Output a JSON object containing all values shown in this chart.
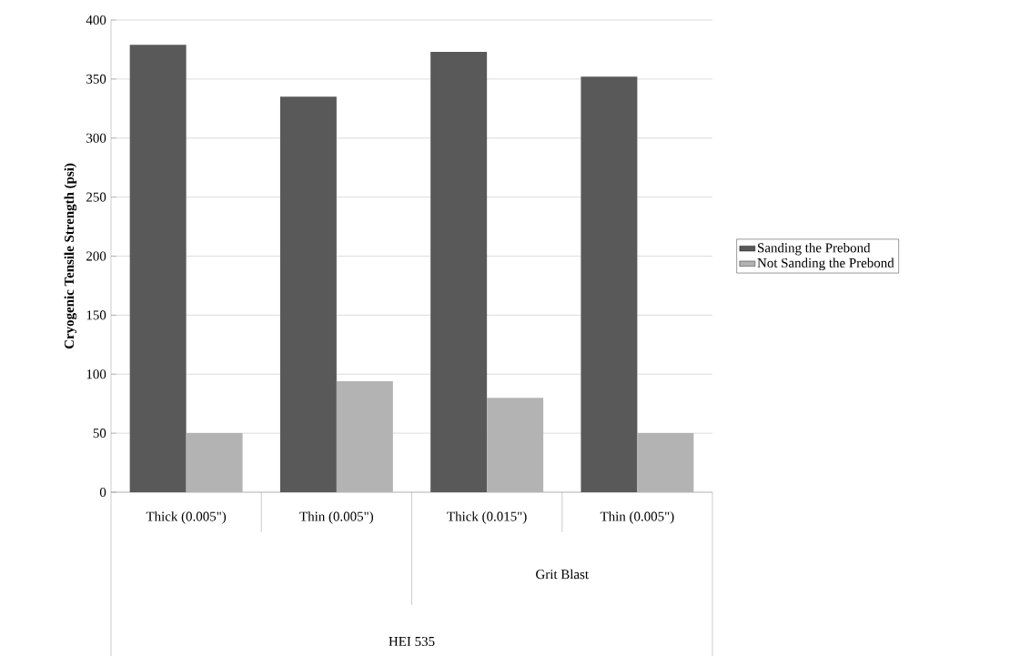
{
  "chart_data": {
    "type": "bar",
    "ylabel": "Cryogenic Tensile Strength (psi)",
    "categories": [
      "Thick (0.005\")",
      "Thin (0.005\")",
      "Thick (0.015\")",
      "Thin (0.005\")"
    ],
    "series": [
      {
        "name": "Sanding the Prebond",
        "color": "#595959",
        "values": [
          379,
          335,
          373,
          352
        ]
      },
      {
        "name": "Not Sanding the Prebond",
        "color": "#b3b3b3",
        "values": [
          50,
          94,
          80,
          50
        ]
      }
    ],
    "annotations": [
      "Grit Blast",
      "HEI 535"
    ],
    "ylim": [
      0,
      400
    ],
    "yticks": [
      0,
      50,
      100,
      150,
      200,
      250,
      300,
      350,
      400
    ],
    "grid": "y",
    "legend": "right"
  }
}
